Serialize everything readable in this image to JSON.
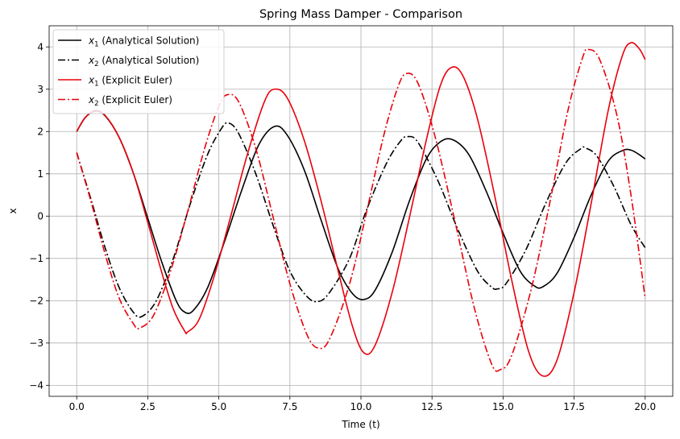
{
  "chart_data": {
    "type": "line",
    "title": "Spring Mass Damper - Comparison",
    "xlabel": "Time (t)",
    "ylabel": "x",
    "xlim": [
      -0.97,
      20.97
    ],
    "ylim": [
      -4.26,
      4.5
    ],
    "xticks": [
      0,
      2.5,
      5,
      7.5,
      10,
      12.5,
      15,
      17.5,
      20
    ],
    "xtick_labels": [
      "0.0",
      "2.5",
      "5.0",
      "7.5",
      "10.0",
      "12.5",
      "15.0",
      "17.5",
      "20.0"
    ],
    "yticks": [
      -4,
      -3,
      -2,
      -1,
      0,
      1,
      2,
      3,
      4
    ],
    "ytick_labels": [
      "−4",
      "−3",
      "−2",
      "−1",
      "0",
      "1",
      "2",
      "3",
      "4"
    ],
    "grid": true,
    "legend_position": "upper-left",
    "series": [
      {
        "name_main": "x",
        "name_sub": "1",
        "name_rest": " (Analytical Solution)",
        "color": "#000000",
        "dash": "solid",
        "points": [
          [
            0,
            2.0
          ],
          [
            0.3,
            2.33
          ],
          [
            0.65,
            2.48
          ],
          [
            1.0,
            2.37
          ],
          [
            1.5,
            1.85
          ],
          [
            2.0,
            1.0
          ],
          [
            2.5,
            -0.05
          ],
          [
            3.0,
            -1.1
          ],
          [
            3.5,
            -2.0
          ],
          [
            3.8,
            -2.27
          ],
          [
            4.1,
            -2.23
          ],
          [
            4.6,
            -1.7
          ],
          [
            5.2,
            -0.6
          ],
          [
            5.8,
            0.6
          ],
          [
            6.4,
            1.68
          ],
          [
            6.96,
            2.12
          ],
          [
            7.4,
            1.92
          ],
          [
            8.0,
            1.1
          ],
          [
            8.6,
            -0.1
          ],
          [
            9.2,
            -1.25
          ],
          [
            9.7,
            -1.83
          ],
          [
            10.1,
            -1.97
          ],
          [
            10.5,
            -1.75
          ],
          [
            11.1,
            -0.85
          ],
          [
            11.7,
            0.35
          ],
          [
            12.3,
            1.35
          ],
          [
            12.8,
            1.76
          ],
          [
            13.25,
            1.8
          ],
          [
            13.8,
            1.45
          ],
          [
            14.4,
            0.6
          ],
          [
            15.0,
            -0.4
          ],
          [
            15.6,
            -1.3
          ],
          [
            16.1,
            -1.65
          ],
          [
            16.4,
            -1.67
          ],
          [
            16.9,
            -1.35
          ],
          [
            17.5,
            -0.5
          ],
          [
            18.1,
            0.5
          ],
          [
            18.7,
            1.3
          ],
          [
            19.2,
            1.55
          ],
          [
            19.5,
            1.56
          ],
          [
            19.8,
            1.45
          ],
          [
            20.0,
            1.35
          ]
        ]
      },
      {
        "name_main": "x",
        "name_sub": "2",
        "name_rest": " (Analytical Solution)",
        "color": "#000000",
        "dash": "dashdot",
        "points": [
          [
            0,
            1.5
          ],
          [
            0.5,
            0.4
          ],
          [
            1.0,
            -0.75
          ],
          [
            1.5,
            -1.7
          ],
          [
            2.0,
            -2.28
          ],
          [
            2.3,
            -2.37
          ],
          [
            2.8,
            -2.0
          ],
          [
            3.4,
            -1.0
          ],
          [
            4.0,
            0.3
          ],
          [
            4.6,
            1.45
          ],
          [
            5.1,
            2.08
          ],
          [
            5.35,
            2.2
          ],
          [
            5.7,
            1.95
          ],
          [
            6.3,
            1.0
          ],
          [
            6.9,
            -0.2
          ],
          [
            7.5,
            -1.3
          ],
          [
            8.1,
            -1.9
          ],
          [
            8.5,
            -2.02
          ],
          [
            8.9,
            -1.8
          ],
          [
            9.6,
            -1.0
          ],
          [
            10.2,
            0.15
          ],
          [
            10.9,
            1.25
          ],
          [
            11.4,
            1.78
          ],
          [
            11.65,
            1.88
          ],
          [
            12.0,
            1.75
          ],
          [
            12.7,
            0.85
          ],
          [
            13.4,
            -0.3
          ],
          [
            14.1,
            -1.3
          ],
          [
            14.6,
            -1.68
          ],
          [
            14.8,
            -1.72
          ],
          [
            15.1,
            -1.6
          ],
          [
            15.8,
            -0.8
          ],
          [
            16.5,
            0.3
          ],
          [
            17.2,
            1.25
          ],
          [
            17.75,
            1.6
          ],
          [
            17.9,
            1.61
          ],
          [
            18.3,
            1.42
          ],
          [
            18.9,
            0.7
          ],
          [
            19.5,
            -0.2
          ],
          [
            20.0,
            -0.75
          ]
        ]
      },
      {
        "name_main": "x",
        "name_sub": "1",
        "name_rest": " (Explicit Euler)",
        "color": "#e8000b",
        "dash": "solid",
        "points": [
          [
            0,
            2.0
          ],
          [
            0.3,
            2.33
          ],
          [
            0.65,
            2.5
          ],
          [
            1.0,
            2.38
          ],
          [
            1.5,
            1.85
          ],
          [
            2.0,
            1.0
          ],
          [
            2.5,
            -0.15
          ],
          [
            3.0,
            -1.35
          ],
          [
            3.4,
            -2.2
          ],
          [
            3.8,
            -2.72
          ],
          [
            3.9,
            -2.74
          ],
          [
            4.3,
            -2.45
          ],
          [
            4.8,
            -1.5
          ],
          [
            5.4,
            -0.05
          ],
          [
            6.0,
            1.45
          ],
          [
            6.6,
            2.7
          ],
          [
            6.95,
            3.0
          ],
          [
            7.4,
            2.8
          ],
          [
            8.0,
            1.8
          ],
          [
            8.6,
            0.35
          ],
          [
            9.2,
            -1.3
          ],
          [
            9.7,
            -2.6
          ],
          [
            10.1,
            -3.23
          ],
          [
            10.5,
            -3.05
          ],
          [
            11.1,
            -1.8
          ],
          [
            11.7,
            -0.05
          ],
          [
            12.3,
            1.8
          ],
          [
            12.8,
            3.1
          ],
          [
            13.2,
            3.52
          ],
          [
            13.6,
            3.3
          ],
          [
            14.1,
            2.3
          ],
          [
            14.7,
            0.5
          ],
          [
            15.3,
            -1.5
          ],
          [
            15.9,
            -3.2
          ],
          [
            16.4,
            -3.78
          ],
          [
            16.9,
            -3.4
          ],
          [
            17.5,
            -1.8
          ],
          [
            18.1,
            0.3
          ],
          [
            18.7,
            2.5
          ],
          [
            19.2,
            3.8
          ],
          [
            19.5,
            4.1
          ],
          [
            19.8,
            3.95
          ],
          [
            20.0,
            3.7
          ]
        ]
      },
      {
        "name_main": "x",
        "name_sub": "2",
        "name_rest": " (Explicit Euler)",
        "color": "#e8000b",
        "dash": "dashdot",
        "points": [
          [
            0,
            1.5
          ],
          [
            0.5,
            0.35
          ],
          [
            1.0,
            -0.9
          ],
          [
            1.5,
            -1.95
          ],
          [
            2.0,
            -2.55
          ],
          [
            2.2,
            -2.65
          ],
          [
            2.7,
            -2.35
          ],
          [
            3.3,
            -1.3
          ],
          [
            3.9,
            0.1
          ],
          [
            4.5,
            1.6
          ],
          [
            5.0,
            2.6
          ],
          [
            5.3,
            2.87
          ],
          [
            5.7,
            2.7
          ],
          [
            6.3,
            1.6
          ],
          [
            6.9,
            0.0
          ],
          [
            7.5,
            -1.6
          ],
          [
            8.1,
            -2.8
          ],
          [
            8.5,
            -3.12
          ],
          [
            8.9,
            -2.9
          ],
          [
            9.6,
            -1.6
          ],
          [
            10.2,
            0.1
          ],
          [
            10.8,
            1.9
          ],
          [
            11.3,
            3.05
          ],
          [
            11.6,
            3.37
          ],
          [
            12.0,
            3.15
          ],
          [
            12.6,
            1.9
          ],
          [
            13.3,
            -0.1
          ],
          [
            14.0,
            -2.2
          ],
          [
            14.6,
            -3.5
          ],
          [
            14.9,
            -3.63
          ],
          [
            15.3,
            -3.3
          ],
          [
            16.0,
            -1.7
          ],
          [
            16.7,
            0.5
          ],
          [
            17.3,
            2.55
          ],
          [
            17.8,
            3.75
          ],
          [
            18.0,
            3.94
          ],
          [
            18.4,
            3.7
          ],
          [
            19.0,
            2.4
          ],
          [
            19.5,
            0.5
          ],
          [
            20.0,
            -1.95
          ]
        ]
      }
    ]
  }
}
